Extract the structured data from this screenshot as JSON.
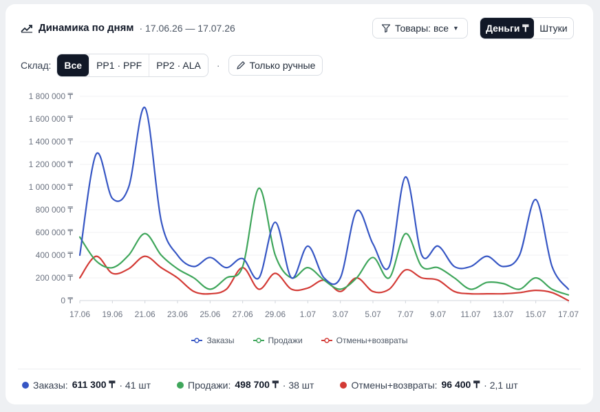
{
  "header": {
    "title": "Динамика по дням",
    "period": "· 17.06.26 — 17.07.26",
    "goods_filter": "Товары: все",
    "mode_money": "Деньги ₸",
    "mode_units": "Штуки"
  },
  "store_filter": {
    "label": "Склад:",
    "options": [
      "Все",
      "PP1 · PPF",
      "PP2 · ALA"
    ],
    "separator": "·",
    "manual_only": "Только ручные"
  },
  "colors": {
    "orders": "#3656c4",
    "sales": "#3fa65b",
    "returns": "#d33a35",
    "grid": "#f0f1f3",
    "axis_text": "#6b7280"
  },
  "chart_data": {
    "type": "line",
    "x": [
      "17.06",
      "18.06",
      "19.06",
      "20.06",
      "21.06",
      "22.06",
      "23.06",
      "24.06",
      "25.06",
      "26.06",
      "27.06",
      "28.06",
      "29.06",
      "30.06",
      "1.07",
      "2.07",
      "3.07",
      "4.07",
      "5.07",
      "6.07",
      "7.07",
      "8.07",
      "9.07",
      "10.07",
      "11.07",
      "12.07",
      "13.07",
      "14.07",
      "15.07",
      "16.07",
      "17.07"
    ],
    "x_tick_labels": [
      "17.06",
      "19.06",
      "21.06",
      "23.06",
      "25.06",
      "27.06",
      "29.06",
      "1.07",
      "3.07",
      "5.07",
      "7.07",
      "9.07",
      "11.07",
      "13.07",
      "15.07",
      "17.07"
    ],
    "y_tick_labels": [
      "0 ₸",
      "200 000 ₸",
      "400 000 ₸",
      "600 000 ₸",
      "800 000 ₸",
      "1 000 000 ₸",
      "1 200 000 ₸",
      "1 400 000 ₸",
      "1 600 000 ₸",
      "1 800 000 ₸"
    ],
    "ylim": [
      0,
      1800000
    ],
    "grid": true,
    "legend_position": "bottom",
    "series": [
      {
        "name": "Заказы",
        "color": "#3656c4",
        "values": [
          400000,
          1290000,
          900000,
          1000000,
          1700000,
          700000,
          400000,
          300000,
          380000,
          290000,
          370000,
          200000,
          690000,
          200000,
          480000,
          200000,
          200000,
          790000,
          500000,
          300000,
          1090000,
          400000,
          480000,
          300000,
          300000,
          390000,
          300000,
          400000,
          890000,
          300000,
          100000
        ]
      },
      {
        "name": "Продажи",
        "color": "#3fa65b",
        "values": [
          560000,
          350000,
          290000,
          400000,
          590000,
          400000,
          280000,
          200000,
          100000,
          200000,
          300000,
          990000,
          400000,
          200000,
          290000,
          180000,
          100000,
          200000,
          380000,
          200000,
          590000,
          300000,
          290000,
          200000,
          100000,
          160000,
          150000,
          100000,
          200000,
          100000,
          50000
        ]
      },
      {
        "name": "Отмены+возвраты",
        "color": "#d33a35",
        "values": [
          200000,
          390000,
          240000,
          280000,
          390000,
          290000,
          200000,
          80000,
          60000,
          100000,
          290000,
          100000,
          240000,
          100000,
          110000,
          180000,
          80000,
          200000,
          80000,
          100000,
          270000,
          200000,
          180000,
          80000,
          60000,
          60000,
          60000,
          70000,
          90000,
          70000,
          0
        ]
      }
    ]
  },
  "legend": {
    "orders": "Заказы",
    "sales": "Продажи",
    "returns": "Отмены+возвраты"
  },
  "summary": [
    {
      "label": "Заказы:",
      "value": "611 300 ₸",
      "extra": "· 41 шт"
    },
    {
      "label": "Продажи:",
      "value": "498 700 ₸",
      "extra": "· 38 шт"
    },
    {
      "label": "Отмены+возвраты:",
      "value": "96 400 ₸",
      "extra": "· 2,1 шт"
    }
  ]
}
